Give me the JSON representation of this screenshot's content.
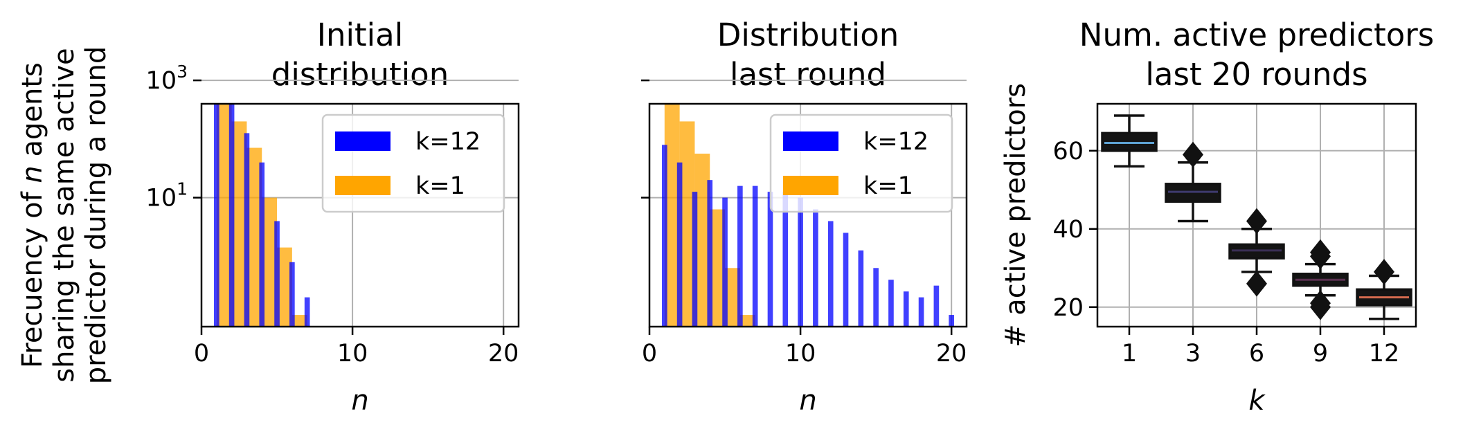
{
  "chart_data": [
    {
      "type": "bar",
      "title_lines": [
        "Initial",
        "distribution"
      ],
      "xlabel": "n",
      "ylabel_parts": [
        "Frecuency of ",
        "n",
        " agents",
        "sharing the same active",
        "predictor during a round"
      ],
      "yscale": "log",
      "xlim": [
        0,
        21
      ],
      "ylim_log10": [
        -1.2,
        2.6
      ],
      "xticks": [
        0,
        10,
        20
      ],
      "yticks": [
        {
          "value_log10": 3,
          "base": "10",
          "exp": "3"
        },
        {
          "value_log10": 1,
          "base": "10",
          "exp": "1"
        }
      ],
      "grid": true,
      "legend": {
        "placement": "upper-right"
      },
      "series": [
        {
          "name": "k=12",
          "color": "#0000ff",
          "alpha": 0.75,
          "bar_width": 0.35,
          "x": [
            1,
            2,
            3,
            4,
            5,
            6,
            7
          ],
          "log10_y": [
            2.6,
            2.6,
            2.1,
            1.6,
            0.6,
            -0.1,
            -0.7
          ]
        },
        {
          "name": "k=1",
          "color": "#ffa500",
          "alpha": 0.75,
          "bar_width": 1.0,
          "x": [
            1.5,
            2.5,
            3.5,
            4.5,
            5.5,
            6.5
          ],
          "log10_y": [
            2.6,
            2.3,
            1.85,
            1.0,
            0.15,
            -1.0
          ]
        }
      ]
    },
    {
      "type": "bar",
      "title_lines": [
        "Distribution",
        "last round"
      ],
      "xlabel": "n",
      "yscale": "log",
      "xlim": [
        0,
        21
      ],
      "ylim_log10": [
        -1.2,
        2.6
      ],
      "xticks": [
        0,
        10,
        20
      ],
      "grid": true,
      "legend": {
        "placement": "upper-right"
      },
      "series": [
        {
          "name": "k=12",
          "color": "#0000ff",
          "alpha": 0.75,
          "bar_width": 0.35,
          "x": [
            1,
            2,
            3,
            4,
            5,
            6,
            7,
            8,
            9,
            10,
            11,
            12,
            13,
            14,
            15,
            16,
            17,
            18,
            19,
            20
          ],
          "log10_y": [
            1.9,
            1.6,
            1.1,
            1.3,
            1.0,
            1.2,
            1.2,
            1.1,
            1.1,
            1.0,
            0.8,
            0.6,
            0.4,
            0.1,
            -0.2,
            -0.4,
            -0.6,
            -0.7,
            -0.5,
            -1.0
          ]
        },
        {
          "name": "k=1",
          "color": "#ffa500",
          "alpha": 0.75,
          "bar_width": 1.0,
          "x": [
            1.5,
            2.5,
            3.5,
            4.5,
            5.5,
            6.5
          ],
          "log10_y": [
            2.6,
            2.3,
            1.75,
            0.8,
            -0.2,
            -1.0
          ]
        }
      ]
    },
    {
      "type": "box",
      "title_lines": [
        "Num. active predictors",
        "last 20 rounds"
      ],
      "xlabel": "k",
      "ylabel": "# active predictors",
      "ylim": [
        15,
        72
      ],
      "yticks": [
        20,
        40,
        60
      ],
      "grid": true,
      "boxes": [
        {
          "k": "1",
          "q1": 60,
          "median": 62,
          "q3": 64.5,
          "whisker_low": 56,
          "whisker_high": 69,
          "fliers": [],
          "color": "#5fa3d4"
        },
        {
          "k": "3",
          "q1": 47,
          "median": 49.5,
          "q3": 51.5,
          "whisker_low": 42,
          "whisker_high": 57,
          "fliers": [
            59
          ],
          "color": "#3e3a6e"
        },
        {
          "k": "6",
          "q1": 32.5,
          "median": 34.5,
          "q3": 36,
          "whisker_low": 29,
          "whisker_high": 40,
          "fliers": [
            26,
            42
          ],
          "color": "#3a2e55"
        },
        {
          "k": "9",
          "q1": 25.5,
          "median": 27,
          "q3": 28.5,
          "whisker_low": 23,
          "whisker_high": 31,
          "fliers": [
            20,
            21,
            33,
            34
          ],
          "color": "#5a3050"
        },
        {
          "k": "12",
          "q1": 20.5,
          "median": 22.5,
          "q3": 24.5,
          "whisker_low": 17,
          "whisker_high": 28,
          "fliers": [
            29
          ],
          "color": "#d36a4e"
        }
      ]
    }
  ]
}
